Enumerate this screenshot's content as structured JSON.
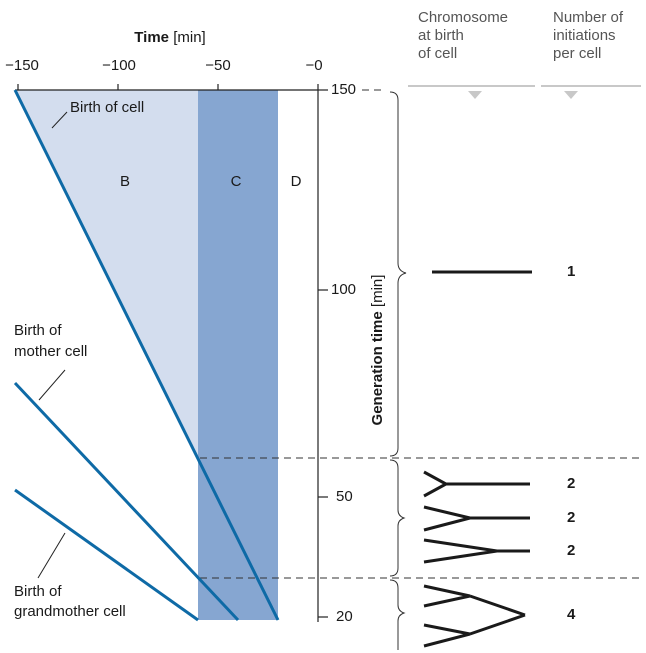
{
  "header": {
    "time_title": "Time",
    "time_unit": "[min]",
    "time_ticks": [
      "−150",
      "−100",
      "−50",
      "−0"
    ]
  },
  "generation_axis": {
    "title": "Generation time",
    "unit": "[min]",
    "ticks": [
      "150",
      "100",
      "50",
      "20"
    ]
  },
  "regions": [
    "B",
    "C",
    "D"
  ],
  "labels": {
    "birth_of_cell": "Birth of cell",
    "mother": [
      "Birth of",
      "mother cell"
    ],
    "grandmother": [
      "Birth of",
      "grandmother cell"
    ]
  },
  "columns": {
    "chromosome": [
      "Chromosome",
      "at birth",
      "of cell"
    ],
    "initiations": [
      "Number of",
      "initiations",
      "per cell"
    ]
  },
  "initiation_counts": [
    "1",
    "2",
    "2",
    "2",
    "4"
  ]
}
